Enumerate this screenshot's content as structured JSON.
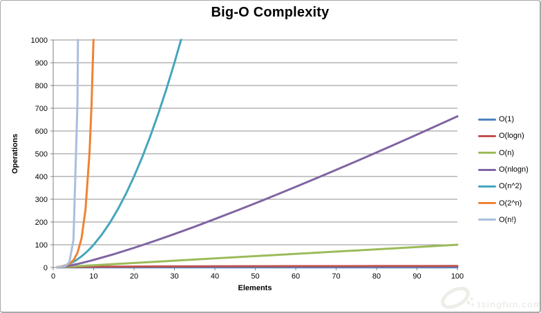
{
  "frame": {
    "background": "#ffffff",
    "border_color": "#a8a8a8"
  },
  "watermark": {
    "text": "tsingfun.com",
    "logo": "ring-logo",
    "color": "#efede8"
  },
  "chart_data": {
    "type": "line",
    "title": "Big-O Complexity",
    "xlabel": "Elements",
    "ylabel": "Operations",
    "xlim": [
      0,
      100
    ],
    "ylim": [
      0,
      1000
    ],
    "xticks": [
      0,
      10,
      20,
      30,
      40,
      50,
      60,
      70,
      80,
      90,
      100
    ],
    "yticks": [
      0,
      100,
      200,
      300,
      400,
      500,
      600,
      700,
      800,
      900,
      1000
    ],
    "grid": "horizontal-only",
    "grid_color": "#8e8e8e",
    "axis_color": "#7f7f7f",
    "tick_label_color": "#000000",
    "legend_position": "right-outside",
    "series": [
      {
        "name": "O(1)",
        "color": "#4F81BD",
        "points": [
          [
            1,
            1
          ],
          [
            100,
            1
          ]
        ]
      },
      {
        "name": "O(logn)",
        "color": "#C0504D",
        "points": [
          [
            1,
            0
          ],
          [
            2,
            1
          ],
          [
            3,
            1.58
          ],
          [
            4,
            2
          ],
          [
            5,
            2.32
          ],
          [
            6,
            2.58
          ],
          [
            8,
            3
          ],
          [
            10,
            3.32
          ],
          [
            13,
            3.7
          ],
          [
            16,
            4
          ],
          [
            20,
            4.32
          ],
          [
            25,
            4.64
          ],
          [
            30,
            4.91
          ],
          [
            40,
            5.32
          ],
          [
            50,
            5.64
          ],
          [
            60,
            5.91
          ],
          [
            70,
            6.13
          ],
          [
            80,
            6.32
          ],
          [
            90,
            6.49
          ],
          [
            100,
            6.64
          ]
        ]
      },
      {
        "name": "O(n)",
        "color": "#9BBB59",
        "points": [
          [
            1,
            1
          ],
          [
            100,
            100
          ]
        ]
      },
      {
        "name": "O(nlogn)",
        "color": "#8064A2",
        "points": [
          [
            1,
            0
          ],
          [
            2,
            2
          ],
          [
            4,
            8
          ],
          [
            6,
            15.5
          ],
          [
            8,
            24
          ],
          [
            10,
            33.2
          ],
          [
            15,
            58.6
          ],
          [
            20,
            86.4
          ],
          [
            25,
            116.1
          ],
          [
            30,
            147.2
          ],
          [
            35,
            179.5
          ],
          [
            40,
            212.9
          ],
          [
            45,
            247.2
          ],
          [
            50,
            282.2
          ],
          [
            55,
            318.1
          ],
          [
            60,
            354.4
          ],
          [
            65,
            391.5
          ],
          [
            70,
            429
          ],
          [
            75,
            467.1
          ],
          [
            80,
            505.8
          ],
          [
            85,
            544.8
          ],
          [
            90,
            584.3
          ],
          [
            95,
            624.2
          ],
          [
            100,
            664.4
          ]
        ]
      },
      {
        "name": "O(n^2)",
        "color": "#45A5BC",
        "points": [
          [
            1,
            1
          ],
          [
            2,
            4
          ],
          [
            3,
            9
          ],
          [
            4,
            16
          ],
          [
            5,
            25
          ],
          [
            6,
            36
          ],
          [
            7,
            49
          ],
          [
            8,
            64
          ],
          [
            9,
            81
          ],
          [
            10,
            100
          ],
          [
            12,
            144
          ],
          [
            14,
            196
          ],
          [
            16,
            256
          ],
          [
            18,
            324
          ],
          [
            20,
            400
          ],
          [
            22,
            484
          ],
          [
            24,
            576
          ],
          [
            26,
            676
          ],
          [
            28,
            784
          ],
          [
            30,
            900
          ],
          [
            32,
            1024
          ],
          [
            33,
            1089
          ]
        ]
      },
      {
        "name": "O(2^n)",
        "color": "#EF8234",
        "points": [
          [
            1,
            2
          ],
          [
            2,
            4
          ],
          [
            3,
            8
          ],
          [
            4,
            16
          ],
          [
            5,
            32
          ],
          [
            6,
            64
          ],
          [
            7,
            128
          ],
          [
            8,
            256
          ],
          [
            9,
            512
          ],
          [
            9.5,
            724
          ],
          [
            10,
            1024
          ],
          [
            10.3,
            1261
          ]
        ]
      },
      {
        "name": "O(n!)",
        "color": "#A7BFDE",
        "points": [
          [
            1,
            1
          ],
          [
            2,
            2
          ],
          [
            3,
            6
          ],
          [
            4,
            24
          ],
          [
            5,
            120
          ],
          [
            6,
            720
          ],
          [
            6.5,
            1871
          ],
          [
            7,
            5040
          ]
        ]
      }
    ]
  }
}
